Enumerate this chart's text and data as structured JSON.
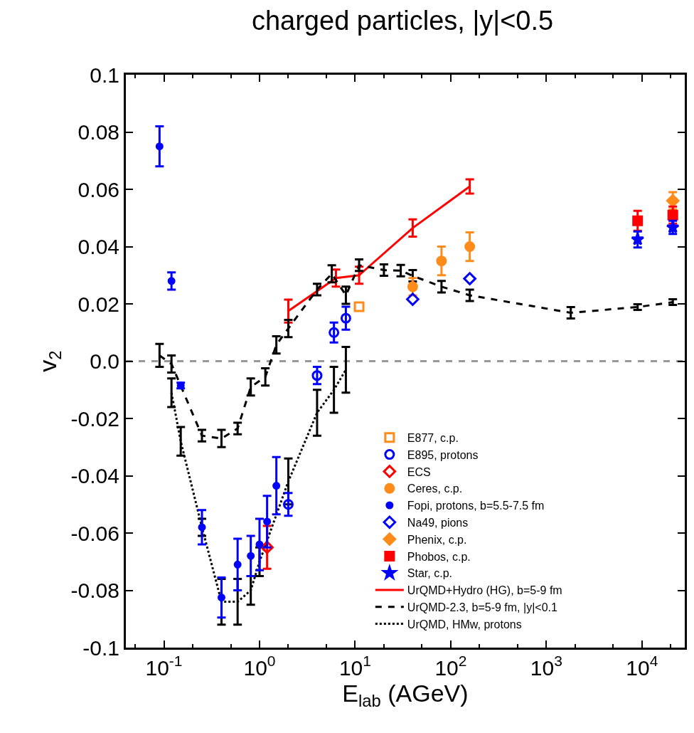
{
  "chart_data": {
    "type": "scatter",
    "title": "charged particles, |y|<0.5",
    "xlabel": "E$_{lab}$ (AGeV)",
    "ylabel": "v$_{2}$",
    "log": "x",
    "grid": false,
    "legend": "bottom right",
    "xlim": [
      0.04,
      28000
    ],
    "xticks": [
      {
        "value": 0.1,
        "label": "10$^{-1}$"
      },
      {
        "value": 1,
        "label": "10$^{0}$"
      },
      {
        "value": 10,
        "label": "10$^{1}$"
      },
      {
        "value": 100,
        "label": "10$^{2}$"
      },
      {
        "value": 1000,
        "label": "10$^{3}$"
      },
      {
        "value": 10000,
        "label": "10$^{4}$"
      }
    ],
    "ylim": [
      -0.1,
      0.1
    ],
    "yticks": [
      -0.1,
      -0.08,
      -0.06,
      -0.04,
      -0.02,
      {
        "value": 0,
        "label": "0.0"
      },
      0.02,
      0.04,
      0.06,
      0.08,
      0.1
    ],
    "ref_lines": [
      {
        "axis": "y",
        "value": 0,
        "color": "#999999",
        "line_style": "dashed"
      }
    ],
    "series": [
      {
        "name": "E877, c.p.",
        "marker": "square-open",
        "color": "#ff8c1a",
        "x": [
          11
        ],
        "values": [
          0.019
        ]
      },
      {
        "name": "E895, protons",
        "marker": "circle-open",
        "color": "#0000ff",
        "x": [
          2,
          4,
          6,
          8
        ],
        "values": [
          -0.05,
          -0.005,
          0.01,
          0.015
        ],
        "errors": [
          0.004,
          0.003,
          0.0035,
          0.004
        ]
      },
      {
        "name": "ECS",
        "marker": "diamond-open",
        "color": "#ff0000",
        "x": [
          1.2
        ],
        "values": [
          -0.065
        ],
        "errors": [
          0.0075
        ]
      },
      {
        "name": "Ceres, c.p.",
        "marker": "circle",
        "color": "#ff8c1a",
        "x": [
          40,
          80,
          158
        ],
        "values": [
          0.026,
          0.035,
          0.04
        ],
        "errors": [
          0.003,
          0.005,
          0.005
        ]
      },
      {
        "name": "Fopi, protons, b=5.5-7.5 fm",
        "marker": "circle-small",
        "color": "#0000ff",
        "x": [
          0.09,
          0.12,
          0.15,
          0.25,
          0.4,
          0.59,
          0.81,
          1.0,
          1.2,
          1.5
        ],
        "values": [
          0.075,
          0.028,
          -0.0085,
          -0.058,
          -0.0825,
          -0.071,
          -0.068,
          -0.064,
          -0.056,
          -0.0435
        ],
        "errors": [
          0.007,
          0.003,
          0.001,
          0.006,
          0.007,
          0.009,
          0.007,
          0.009,
          0.009,
          0.01
        ]
      },
      {
        "name": "Na49, pions",
        "marker": "diamond-open",
        "color": "#0000ff",
        "x": [
          40,
          158
        ],
        "values": [
          0.0216,
          0.0288
        ]
      },
      {
        "name": "Phenix, c.p.",
        "marker": "diamond",
        "color": "#ff8c1a",
        "x": [
          21000
        ],
        "values": [
          0.056
        ],
        "errors": [
          0.003
        ]
      },
      {
        "name": "Phobos, c.p.",
        "marker": "square",
        "color": "#ff0000",
        "x": [
          9000,
          21000
        ],
        "values": [
          0.049,
          0.051
        ],
        "errors": [
          0.0035,
          0.003
        ]
      },
      {
        "name": "Star, c.p.",
        "marker": "star",
        "color": "#0000ff",
        "x": [
          9000,
          21000
        ],
        "values": [
          0.0425,
          0.0467
        ],
        "errors": [
          0.0028,
          0.0023
        ]
      },
      {
        "name": "UrQMD+Hydro (HG), b=5-9 fm",
        "type": "line",
        "line_style": "solid",
        "color": "#ff0000",
        "x": [
          2,
          6.3,
          11,
          40,
          158
        ],
        "values": [
          0.0175,
          0.029,
          0.03,
          0.0465,
          0.061
        ],
        "errors": [
          0.004,
          0.003,
          0.003,
          0.003,
          0.0025
        ]
      },
      {
        "name": "UrQMD-2.3, b=5-9 fm, |y|<0.1",
        "type": "line",
        "line_style": "dashed",
        "color": "#000000",
        "x": [
          0.09,
          0.12,
          0.25,
          0.4,
          0.59,
          0.81,
          1.15,
          1.5,
          2,
          4,
          5.7,
          8,
          11,
          20,
          30,
          40,
          80,
          158,
          1800,
          9000,
          21000
        ],
        "values": [
          0.002,
          -0.001,
          -0.026,
          -0.027,
          -0.0235,
          -0.009,
          -0.0055,
          0.0057,
          0.0114,
          0.025,
          0.0305,
          0.023,
          0.0335,
          0.0318,
          0.0316,
          0.0298,
          0.026,
          0.023,
          0.0169,
          0.0189,
          0.0206
        ],
        "errors": [
          0.004,
          0.003,
          0.002,
          0.003,
          0.002,
          0.003,
          0.003,
          0.003,
          0.003,
          0.002,
          0.003,
          0.003,
          0.002,
          0.002,
          0.002,
          0.002,
          0.002,
          0.002,
          0.002,
          0.001,
          0.001
        ]
      },
      {
        "name": "UrQMD, HMw, protons",
        "type": "line",
        "line_style": "dotted",
        "color": "#000000",
        "x": [
          0.12,
          0.15,
          0.25,
          0.4,
          0.59,
          0.81,
          1.0,
          2,
          4,
          6,
          8
        ],
        "values": [
          -0.011,
          -0.028,
          -0.058,
          -0.084,
          -0.084,
          -0.08,
          -0.07,
          -0.042,
          -0.018,
          -0.01,
          -0.003
        ],
        "errors": [
          0.005,
          0.005,
          0.003,
          0.008,
          0.008,
          0.005,
          0.005,
          0.008,
          0.008,
          0.008,
          0.008
        ]
      }
    ]
  }
}
